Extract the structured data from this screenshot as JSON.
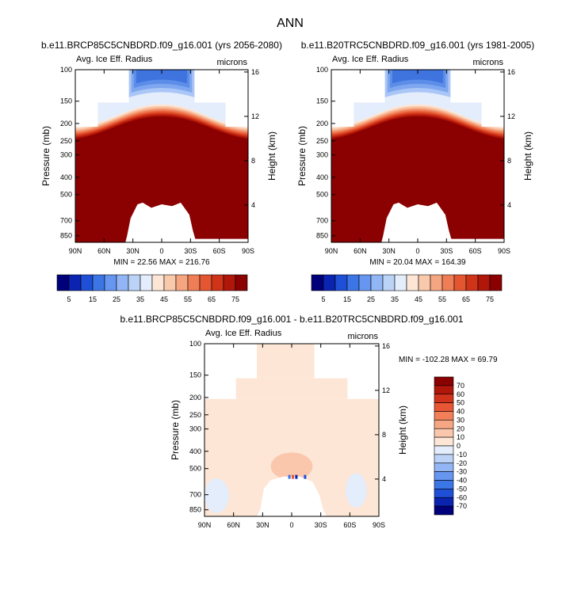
{
  "page_title": "ANN",
  "chart_data": [
    {
      "type": "heatmap",
      "title": "b.e11.BRCP85C5CNBDRD.f09_g16.001 (yrs 2056-2080)",
      "left_label": "Avg. Ice Eff. Radius",
      "right_label": "microns",
      "ylabel": "Pressure (mb)",
      "y2label": "Height (km)",
      "x_ticks": [
        "90N",
        "60N",
        "30N",
        "0",
        "30S",
        "60S",
        "90S"
      ],
      "y_ticks": [
        "100",
        "150",
        "200",
        "250",
        "300",
        "400",
        "500",
        "700",
        "850"
      ],
      "y2_ticks": [
        "16",
        "12",
        "8",
        "4"
      ],
      "stats": "MIN = 22.56  MAX = 216.76",
      "min": 22.56,
      "max": 216.76
    },
    {
      "type": "heatmap",
      "title": "b.e11.B20TRC5CNBDRD.f09_g16.001 (yrs 1981-2005)",
      "left_label": "Avg. Ice Eff. Radius",
      "right_label": "microns",
      "ylabel": "Pressure (mb)",
      "y2label": "Height (km)",
      "x_ticks": [
        "90N",
        "60N",
        "30N",
        "0",
        "30S",
        "60S",
        "90S"
      ],
      "y_ticks": [
        "100",
        "150",
        "200",
        "250",
        "300",
        "400",
        "500",
        "700",
        "850"
      ],
      "y2_ticks": [
        "16",
        "12",
        "8",
        "4"
      ],
      "stats": "MIN = 20.04  MAX = 164.39",
      "min": 20.04,
      "max": 164.39
    },
    {
      "type": "heatmap",
      "title": "b.e11.BRCP85C5CNBDRD.f09_g16.001 - b.e11.B20TRC5CNBDRD.f09_g16.001",
      "left_label": "Avg. Ice Eff. Radius",
      "right_label": "microns",
      "ylabel": "Pressure (mb)",
      "y2label": "Height (km)",
      "x_ticks": [
        "90N",
        "60N",
        "30N",
        "0",
        "30S",
        "60S",
        "90S"
      ],
      "y_ticks": [
        "100",
        "150",
        "200",
        "250",
        "300",
        "400",
        "500",
        "700",
        "850"
      ],
      "y2_ticks": [
        "16",
        "12",
        "8",
        "4"
      ],
      "stats": "MIN = -102.28  MAX = 69.79",
      "min": -102.28,
      "max": 69.79
    }
  ],
  "colorbar_top": {
    "labels": [
      "5",
      "15",
      "25",
      "35",
      "45",
      "55",
      "65",
      "75"
    ],
    "colors": [
      "#00007a",
      "#0a23b0",
      "#1f4fd6",
      "#3c75e6",
      "#6696ef",
      "#92b6f5",
      "#bcd3f8",
      "#e4edfb",
      "#fde6d6",
      "#f9c9ac",
      "#f5a57f",
      "#ef7d55",
      "#e45632",
      "#cf3318",
      "#b0160a",
      "#8b0000"
    ]
  },
  "colorbar_diff": {
    "labels": [
      "70",
      "60",
      "50",
      "40",
      "30",
      "20",
      "10",
      "0",
      "-10",
      "-20",
      "-30",
      "-40",
      "-50",
      "-60",
      "-70"
    ],
    "colors": [
      "#8b0000",
      "#b0160a",
      "#d0321c",
      "#e85735",
      "#f27f5a",
      "#f7a683",
      "#fac7ad",
      "#fde6d6",
      "#e4edfb",
      "#bcd3f8",
      "#92b6f5",
      "#6696ef",
      "#3c75e6",
      "#1f4fd6",
      "#0a23b0",
      "#00007a"
    ]
  }
}
